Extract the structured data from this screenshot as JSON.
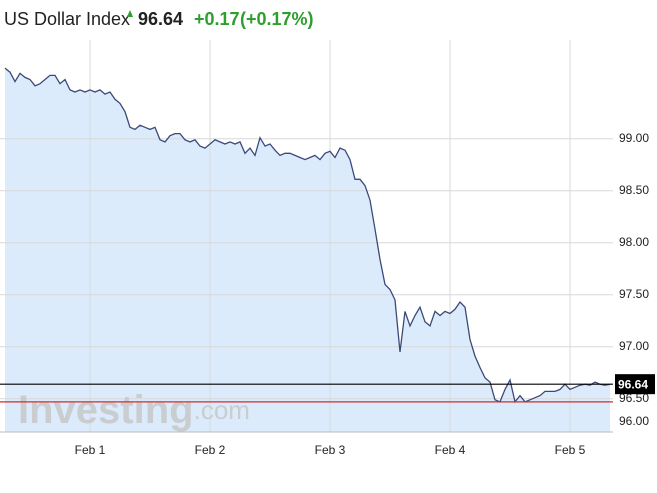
{
  "chart_data": {
    "type": "area",
    "title": "US Dollar Index",
    "price": "96.64",
    "change": "+0.17",
    "change_pct": "(+0.17%)",
    "watermark": [
      "Investing",
      ".com"
    ],
    "color": "#3b4a78",
    "fill": "#dcebfb",
    "grid": true,
    "x": [
      -17,
      -16,
      -15,
      -14,
      -13,
      -12,
      -11,
      -10,
      -9,
      -8,
      -7,
      -6,
      -5,
      -4,
      -3,
      -2,
      -1,
      0,
      1,
      2,
      3,
      4,
      5,
      6,
      7,
      8,
      9,
      10,
      11,
      12,
      13,
      14,
      15,
      16,
      17,
      18,
      19,
      20,
      21,
      22,
      23,
      24,
      25,
      26,
      27,
      28,
      29,
      30,
      31,
      32,
      33,
      34,
      35,
      36,
      37,
      38,
      39,
      40,
      41,
      42,
      43,
      44,
      45,
      46,
      47,
      48,
      49,
      50,
      51,
      52,
      53,
      54,
      55,
      56,
      57,
      58,
      59,
      60,
      61,
      62,
      63,
      64,
      65,
      66,
      67,
      68,
      69,
      70,
      71,
      72,
      73,
      74,
      75,
      76,
      77,
      78,
      79,
      80,
      81,
      82,
      83,
      84,
      85,
      86,
      87,
      88,
      89,
      90,
      91,
      92,
      93,
      94,
      95,
      96,
      97,
      98,
      99,
      100,
      101,
      102,
      103,
      104
    ],
    "values": [
      99.68,
      99.64,
      99.55,
      99.63,
      99.59,
      99.57,
      99.51,
      99.53,
      99.57,
      99.61,
      99.61,
      99.53,
      99.57,
      99.47,
      99.45,
      99.47,
      99.45,
      99.47,
      99.45,
      99.47,
      99.43,
      99.45,
      99.38,
      99.34,
      99.26,
      99.11,
      99.09,
      99.13,
      99.11,
      99.09,
      99.11,
      98.99,
      98.97,
      99.03,
      99.05,
      99.05,
      98.99,
      98.97,
      98.99,
      98.93,
      98.91,
      98.95,
      98.99,
      98.97,
      98.95,
      98.97,
      98.95,
      98.97,
      98.86,
      98.91,
      98.84,
      99.01,
      98.93,
      98.95,
      98.89,
      98.84,
      98.86,
      98.86,
      98.84,
      98.82,
      98.8,
      98.82,
      98.84,
      98.8,
      98.86,
      98.88,
      98.82,
      98.91,
      98.89,
      98.8,
      98.61,
      98.61,
      98.55,
      98.41,
      98.13,
      97.84,
      97.6,
      97.55,
      97.45,
      96.95,
      97.34,
      97.2,
      97.3,
      97.38,
      97.24,
      97.2,
      97.34,
      97.3,
      97.34,
      97.32,
      97.36,
      97.43,
      97.38,
      97.07,
      96.91,
      96.8,
      96.7,
      96.66,
      96.49,
      96.47,
      96.59,
      96.68,
      96.47,
      96.53,
      96.47,
      96.49,
      96.51,
      96.53,
      96.57,
      96.57,
      96.57,
      96.59,
      96.64,
      96.59,
      96.61,
      96.63,
      96.64,
      96.63,
      96.66,
      96.64,
      96.63,
      96.64
    ],
    "xlim": [
      -18,
      104.6
    ],
    "xticks": [
      {
        "value": 0,
        "label": "Feb 1"
      },
      {
        "value": 24,
        "label": "Feb 2"
      },
      {
        "value": 48,
        "label": "Feb 3"
      },
      {
        "value": 72,
        "label": "Feb 4"
      },
      {
        "value": 96,
        "label": "Feb 5"
      }
    ],
    "ylim": [
      96.18,
      99.95
    ],
    "yticks": [
      {
        "value": 96,
        "label": "96.00"
      },
      {
        "value": 96.5,
        "label": "96.50"
      },
      {
        "value": 97,
        "label": "97.00"
      },
      {
        "value": 97.5,
        "label": "97.50"
      },
      {
        "value": 98,
        "label": "98.00"
      },
      {
        "value": 98.5,
        "label": "98.50"
      },
      {
        "value": 99,
        "label": "99.00"
      }
    ],
    "hlines": [
      {
        "value": 96.64,
        "color": "#000000"
      },
      {
        "value": 96.47,
        "color": "#d42a2a"
      }
    ]
  }
}
